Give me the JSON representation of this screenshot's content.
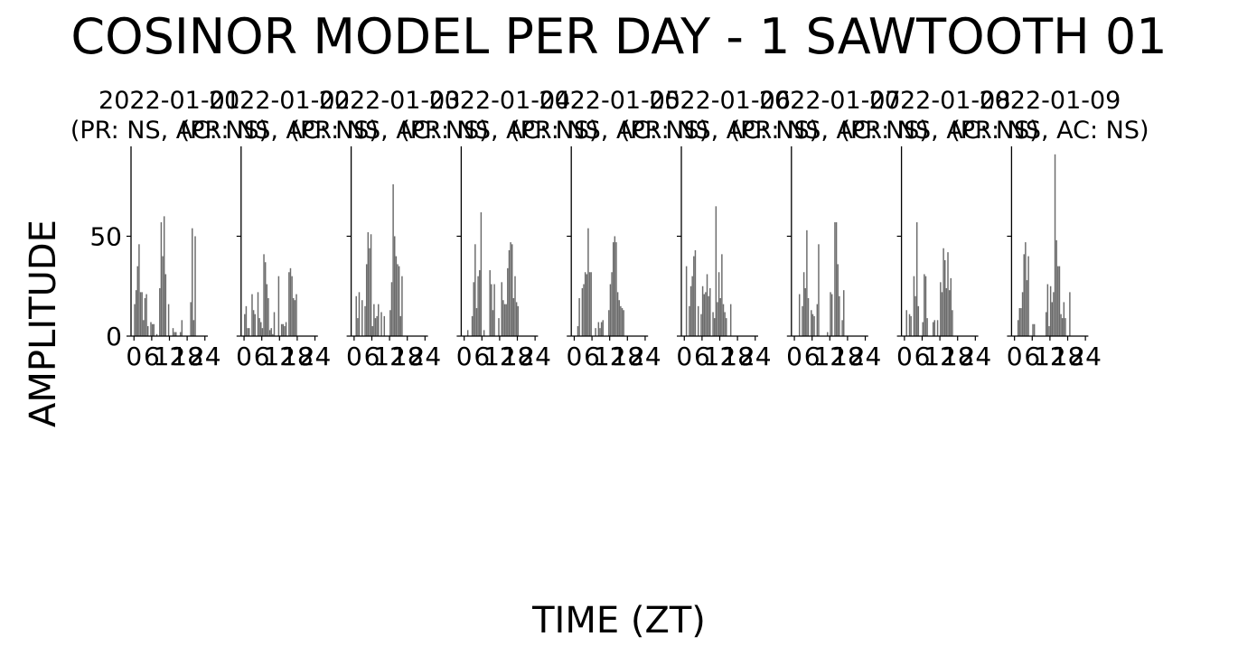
{
  "chart_data": {
    "type": "bar",
    "title": "COSINOR MODEL PER DAY - 1 SAWTOOTH 01",
    "xlabel": "TIME (ZT)",
    "ylabel": "AMPLITUDE",
    "ylim": [
      0,
      95
    ],
    "yticks": [
      0,
      50
    ],
    "xlim": [
      -1,
      25
    ],
    "xticks": [
      0,
      6,
      12,
      18,
      24
    ],
    "bar_color": "#6b6b6b",
    "grid": false,
    "bin_hours": 0.5,
    "panels": [
      {
        "title_line1": "2022-01-01",
        "title_line2": "(PR: NS, AC: NS)",
        "values": [
          16,
          23,
          35,
          46,
          22,
          22,
          8,
          19,
          21,
          5,
          0,
          7,
          6,
          6,
          0,
          1,
          0,
          24,
          57,
          40,
          60,
          31,
          0,
          16,
          0,
          0,
          4,
          2,
          2,
          0,
          0,
          2,
          8,
          0,
          0,
          0,
          0,
          0,
          17,
          54,
          8,
          50,
          0,
          0,
          0,
          0,
          0,
          0
        ]
      },
      {
        "title_line1": "2022-01-02",
        "title_line2": "(PR: NS, AC: NS)",
        "values": [
          11,
          15,
          4,
          4,
          0,
          21,
          13,
          11,
          0,
          22,
          9,
          7,
          4,
          41,
          37,
          26,
          19,
          3,
          4,
          1,
          12,
          0,
          0,
          30,
          0,
          6,
          6,
          5,
          7,
          0,
          32,
          34,
          30,
          19,
          18,
          21,
          0,
          0,
          0,
          0,
          0,
          0,
          0,
          0,
          0,
          0,
          0,
          0
        ]
      },
      {
        "title_line1": "2022-01-03",
        "title_line2": "(PR: NS, AC: NS)",
        "values": [
          0,
          20,
          9,
          22,
          0,
          18,
          0,
          15,
          36,
          52,
          44,
          51,
          5,
          16,
          9,
          10,
          16,
          0,
          12,
          0,
          10,
          0,
          0,
          0,
          13,
          27,
          76,
          50,
          40,
          36,
          35,
          10,
          30,
          0,
          0,
          0,
          0,
          0,
          0,
          0,
          0,
          0,
          0,
          0,
          0,
          0,
          0,
          0
        ]
      },
      {
        "title_line1": "2022-01-04",
        "title_line2": "(PR: NS, AC: NS)",
        "values": [
          0,
          0,
          3,
          0,
          0,
          10,
          27,
          46,
          14,
          30,
          33,
          62,
          0,
          3,
          0,
          0,
          0,
          33,
          26,
          13,
          26,
          0,
          0,
          9,
          0,
          27,
          18,
          16,
          16,
          34,
          43,
          47,
          46,
          19,
          30,
          17,
          15,
          0,
          0,
          0,
          0,
          0,
          0,
          0,
          0,
          0,
          0,
          0
        ]
      },
      {
        "title_line1": "2022-01-05",
        "title_line2": "(PR: NS, AC: NS)",
        "values": [
          0,
          0,
          5,
          19,
          0,
          24,
          26,
          32,
          31,
          54,
          32,
          32,
          0,
          0,
          4,
          0,
          7,
          4,
          7,
          8,
          0,
          0,
          0,
          13,
          26,
          32,
          47,
          50,
          47,
          22,
          18,
          15,
          14,
          13,
          0,
          0,
          0,
          0,
          0,
          0,
          0,
          0,
          0,
          0,
          0,
          0,
          0,
          0
        ]
      },
      {
        "title_line1": "2022-01-06",
        "title_line2": "(PR: NS, AC: NS)",
        "values": [
          0,
          35,
          0,
          15,
          25,
          30,
          40,
          43,
          0,
          15,
          0,
          11,
          25,
          21,
          22,
          31,
          20,
          24,
          0,
          12,
          9,
          65,
          17,
          32,
          19,
          41,
          16,
          12,
          9,
          0,
          0,
          16,
          0,
          0,
          0,
          0,
          0,
          0,
          0,
          0,
          0,
          0,
          0,
          0,
          0,
          0,
          0,
          0
        ]
      },
      {
        "title_line1": "2022-01-07",
        "title_line2": "(PR: NS, AC: NS)",
        "values": [
          0,
          0,
          0,
          21,
          0,
          15,
          32,
          24,
          53,
          19,
          0,
          13,
          11,
          10,
          0,
          16,
          46,
          0,
          0,
          0,
          0,
          0,
          2,
          0,
          22,
          21,
          0,
          57,
          57,
          36,
          20,
          0,
          8,
          23,
          0,
          0,
          0,
          0,
          0,
          0,
          0,
          0,
          0,
          0,
          0,
          0,
          0,
          0
        ]
      },
      {
        "title_line1": "2022-01-08",
        "title_line2": "(PR: NS, AC: NS)",
        "values": [
          0,
          13,
          0,
          11,
          10,
          0,
          30,
          20,
          57,
          15,
          0,
          0,
          7,
          31,
          30,
          9,
          0,
          0,
          0,
          7,
          8,
          0,
          8,
          0,
          27,
          22,
          44,
          38,
          24,
          42,
          23,
          29,
          13,
          0,
          0,
          0,
          0,
          0,
          0,
          0,
          0,
          0,
          0,
          0,
          0,
          0,
          0,
          0
        ]
      },
      {
        "title_line1": "2022-01-09",
        "title_line2": "(PR: NS, AC: NS)",
        "values": [
          0,
          0,
          8,
          14,
          14,
          22,
          41,
          47,
          28,
          40,
          0,
          0,
          6,
          6,
          0,
          0,
          0,
          0,
          0,
          0,
          0,
          12,
          26,
          5,
          25,
          17,
          22,
          91,
          48,
          35,
          35,
          11,
          9,
          17,
          9,
          0,
          0,
          22,
          0,
          0,
          0,
          0,
          0,
          0,
          0,
          0,
          0,
          0
        ]
      }
    ]
  }
}
